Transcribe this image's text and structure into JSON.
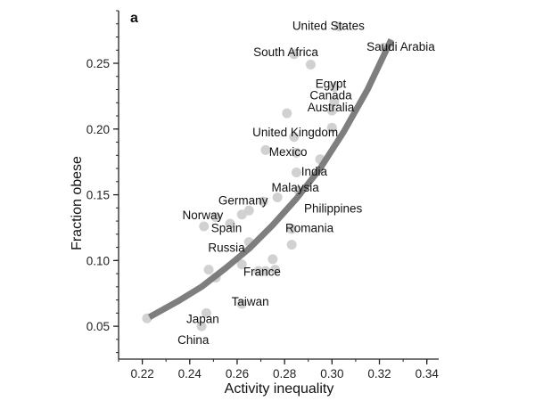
{
  "panel_label": "a",
  "colors": {
    "point": "#cfcfcf",
    "fit_line": "#777777",
    "axis": "#222222"
  },
  "chart_data": {
    "type": "scatter",
    "xlabel": "Activity inequality",
    "ylabel": "Fraction obese",
    "xlim": [
      0.21,
      0.345
    ],
    "ylim": [
      0.025,
      0.29
    ],
    "x_ticks": [
      0.22,
      0.24,
      0.26,
      0.28,
      0.3,
      0.32,
      0.34
    ],
    "x_tick_labels": [
      "0.22",
      "0.24",
      "0.26",
      "0.28",
      "0.30",
      "0.32",
      "0.34"
    ],
    "y_ticks": [
      0.05,
      0.1,
      0.15,
      0.2,
      0.25
    ],
    "y_tick_labels": [
      "0.05",
      "0.10",
      "0.15",
      "0.20",
      "0.25"
    ],
    "grid": false,
    "points": [
      {
        "x": 0.303,
        "y": 0.278
      },
      {
        "x": 0.284,
        "y": 0.257
      },
      {
        "x": 0.291,
        "y": 0.249
      },
      {
        "x": 0.322,
        "y": 0.262
      },
      {
        "x": 0.301,
        "y": 0.232
      },
      {
        "x": 0.301,
        "y": 0.221
      },
      {
        "x": 0.3,
        "y": 0.214
      },
      {
        "x": 0.281,
        "y": 0.212
      },
      {
        "x": 0.3,
        "y": 0.201
      },
      {
        "x": 0.284,
        "y": 0.194
      },
      {
        "x": 0.272,
        "y": 0.184
      },
      {
        "x": 0.285,
        "y": 0.182
      },
      {
        "x": 0.295,
        "y": 0.177
      },
      {
        "x": 0.285,
        "y": 0.167
      },
      {
        "x": 0.286,
        "y": 0.153
      },
      {
        "x": 0.277,
        "y": 0.148
      },
      {
        "x": 0.271,
        "y": 0.145
      },
      {
        "x": 0.265,
        "y": 0.138
      },
      {
        "x": 0.262,
        "y": 0.135
      },
      {
        "x": 0.251,
        "y": 0.133
      },
      {
        "x": 0.257,
        "y": 0.128
      },
      {
        "x": 0.246,
        "y": 0.126
      },
      {
        "x": 0.283,
        "y": 0.124
      },
      {
        "x": 0.265,
        "y": 0.114
      },
      {
        "x": 0.283,
        "y": 0.112
      },
      {
        "x": 0.275,
        "y": 0.101
      },
      {
        "x": 0.262,
        "y": 0.097
      },
      {
        "x": 0.248,
        "y": 0.093
      },
      {
        "x": 0.276,
        "y": 0.093
      },
      {
        "x": 0.269,
        "y": 0.092
      },
      {
        "x": 0.272,
        "y": 0.092
      },
      {
        "x": 0.251,
        "y": 0.087
      },
      {
        "x": 0.262,
        "y": 0.067
      },
      {
        "x": 0.247,
        "y": 0.06
      },
      {
        "x": 0.245,
        "y": 0.05
      },
      {
        "x": 0.222,
        "y": 0.056
      }
    ],
    "fit_curve": {
      "x": [
        0.223,
        0.235,
        0.245,
        0.255,
        0.265,
        0.275,
        0.285,
        0.295,
        0.305,
        0.315,
        0.325
      ],
      "y": [
        0.057,
        0.069,
        0.08,
        0.094,
        0.109,
        0.127,
        0.147,
        0.17,
        0.198,
        0.23,
        0.268
      ]
    },
    "annotations": [
      {
        "text": "United States",
        "x": 0.2985,
        "y": 0.2755
      },
      {
        "text": "Saudi Arabia",
        "x": 0.329,
        "y": 0.2595
      },
      {
        "text": "South Africa",
        "x": 0.2805,
        "y": 0.2555
      },
      {
        "text": "Egypt",
        "x": 0.2995,
        "y": 0.2315
      },
      {
        "text": "Canada",
        "x": 0.2995,
        "y": 0.2225
      },
      {
        "text": "Australia",
        "x": 0.2995,
        "y": 0.2135
      },
      {
        "text": "United Kingdom",
        "x": 0.2845,
        "y": 0.1945
      },
      {
        "text": "Mexico",
        "x": 0.2815,
        "y": 0.1795
      },
      {
        "text": "India",
        "x": 0.2925,
        "y": 0.1645
      },
      {
        "text": "Malaysia",
        "x": 0.2845,
        "y": 0.1525
      },
      {
        "text": "Germany",
        "x": 0.2625,
        "y": 0.1425
      },
      {
        "text": "Philippines",
        "x": 0.3005,
        "y": 0.1365
      },
      {
        "text": "Norway",
        "x": 0.2455,
        "y": 0.1315
      },
      {
        "text": "Spain",
        "x": 0.2555,
        "y": 0.1215
      },
      {
        "text": "Romania",
        "x": 0.2905,
        "y": 0.1215
      },
      {
        "text": "Russia",
        "x": 0.2555,
        "y": 0.1065
      },
      {
        "text": "France",
        "x": 0.2705,
        "y": 0.0885
      },
      {
        "text": "Taiwan",
        "x": 0.2655,
        "y": 0.0655
      },
      {
        "text": "Japan",
        "x": 0.2455,
        "y": 0.0525
      },
      {
        "text": "China",
        "x": 0.2415,
        "y": 0.0365
      }
    ]
  }
}
